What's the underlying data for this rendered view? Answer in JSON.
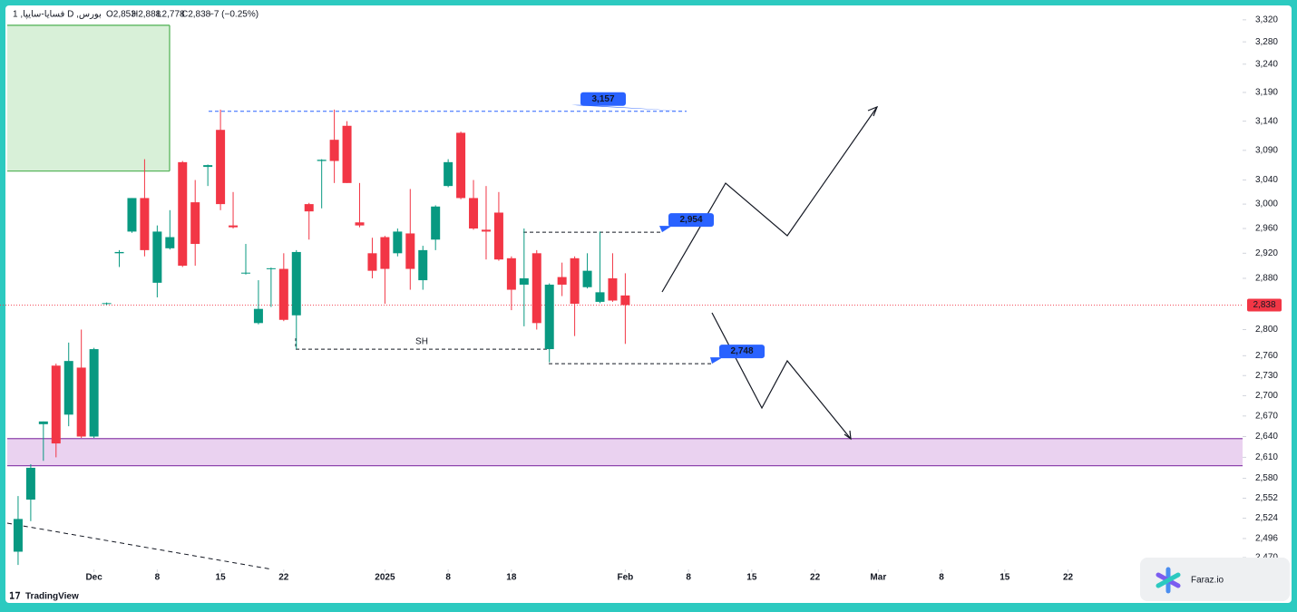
{
  "chart_data": {
    "type": "candlestick",
    "header": {
      "symbol": "1 ,فسایا-سایپا D ,بورس",
      "open": "O2,853",
      "high": "H2,888",
      "low": "L2,778",
      "close": "C2,838",
      "change": "−7 (−0.25%)"
    },
    "open": [
      2478,
      2550,
      2658,
      2745,
      2672,
      2742,
      2640,
      2840,
      2920,
      2955,
      3010,
      2873,
      2928,
      3070,
      3003,
      3062,
      3125,
      2965,
      2888,
      2810,
      2895,
      2895,
      2822,
      3000,
      3072,
      3108,
      3132,
      2970,
      2920,
      2946,
      2920,
      2952,
      2877,
      2942,
      3030,
      3120,
      3010,
      2958,
      2986,
      2912,
      2870,
      2920,
      2770,
      2882,
      2912,
      2866,
      2843,
      2880,
      2853
    ],
    "high": [
      2555,
      2600,
      2662,
      2748,
      2780,
      2800,
      2772,
      2842,
      2925,
      3010,
      3075,
      2965,
      2990,
      3072,
      3040,
      3066,
      3160,
      3020,
      2935,
      2877,
      2897,
      2920,
      2925,
      3002,
      3075,
      3160,
      3140,
      3035,
      2945,
      2948,
      2960,
      3025,
      2932,
      2998,
      3075,
      3122,
      3040,
      3030,
      3020,
      2915,
      2960,
      2925,
      2872,
      2905,
      2915,
      2920,
      2955,
      2920,
      2888
    ],
    "low": [
      2460,
      2520,
      2605,
      2610,
      2655,
      2638,
      2638,
      2838,
      2898,
      2953,
      2915,
      2850,
      2926,
      2898,
      2900,
      3030,
      2990,
      2960,
      2886,
      2808,
      2835,
      2813,
      2770,
      2942,
      2993,
      3035,
      3035,
      2962,
      2880,
      2840,
      2915,
      2862,
      2862,
      2925,
      3028,
      3008,
      2958,
      2910,
      2908,
      2830,
      2805,
      2800,
      2750,
      2852,
      2790,
      2864,
      2841,
      2843,
      2778
    ],
    "close": [
      2523,
      2595,
      2662,
      2630,
      2752,
      2640,
      2770,
      2841,
      2922,
      3010,
      2925,
      2955,
      2946,
      2900,
      2935,
      3065,
      3000,
      2962,
      2889,
      2832,
      2896,
      2815,
      2922,
      2988,
      3074,
      3072,
      3035,
      2965,
      2892,
      2895,
      2955,
      2895,
      2925,
      2996,
      3070,
      3010,
      2960,
      2955,
      2910,
      2862,
      2880,
      2810,
      2870,
      2870,
      2840,
      2892,
      2858,
      2845,
      2838
    ],
    "up_color": "#089981",
    "down_color": "#f23645",
    "log_scale": true,
    "xlim": [
      -1.43,
      96.8
    ],
    "ylim": [
      2454,
      3343
    ],
    "yticks": [
      {
        "value": 3320,
        "label": "3,320"
      },
      {
        "value": 3280,
        "label": "3,280"
      },
      {
        "value": 3240,
        "label": "3,240"
      },
      {
        "value": 3190,
        "label": "3,190"
      },
      {
        "value": 3140,
        "label": "3,140"
      },
      {
        "value": 3090,
        "label": "3,090"
      },
      {
        "value": 3040,
        "label": "3,040"
      },
      {
        "value": 3000,
        "label": "3,000"
      },
      {
        "value": 2960,
        "label": "2,960"
      },
      {
        "value": 2920,
        "label": "2,920"
      },
      {
        "value": 2880,
        "label": "2,880"
      },
      {
        "value": 2800,
        "label": "2,800"
      },
      {
        "value": 2760,
        "label": "2,760"
      },
      {
        "value": 2730,
        "label": "2,730"
      },
      {
        "value": 2700,
        "label": "2,700"
      },
      {
        "value": 2670,
        "label": "2,670"
      },
      {
        "value": 2640,
        "label": "2,640"
      },
      {
        "value": 2610,
        "label": "2,610"
      },
      {
        "value": 2580,
        "label": "2,580"
      },
      {
        "value": 2552,
        "label": "2,552"
      },
      {
        "value": 2524,
        "label": "2,524"
      },
      {
        "value": 2496,
        "label": "2,496"
      },
      {
        "value": 2470,
        "label": "2,470"
      }
    ],
    "xticks": [
      {
        "value": 6,
        "label": "Dec"
      },
      {
        "value": 11,
        "label": "8"
      },
      {
        "value": 16,
        "label": "15"
      },
      {
        "value": 21,
        "label": "22"
      },
      {
        "value": 29,
        "label": "2025"
      },
      {
        "value": 34,
        "label": "8"
      },
      {
        "value": 39,
        "label": "18"
      },
      {
        "value": 48,
        "label": "Feb"
      },
      {
        "value": 53,
        "label": "8"
      },
      {
        "value": 58,
        "label": "15"
      },
      {
        "value": 63,
        "label": "22"
      },
      {
        "value": 68,
        "label": "Mar"
      },
      {
        "value": 73,
        "label": "8"
      },
      {
        "value": 78,
        "label": "15"
      },
      {
        "value": 83,
        "label": "22"
      }
    ],
    "last_price": {
      "value": 2838,
      "label": "2,838"
    },
    "levels": [
      {
        "label": "3,157",
        "value": 3157
      },
      {
        "label": "2,954",
        "value": 2954
      },
      {
        "label": "2,748",
        "value": 2748
      },
      {
        "label": "SH",
        "value": 2770
      }
    ],
    "zones": [
      {
        "from": 3055,
        "to": 3310,
        "color": "#d8f0d8",
        "border": "#4caf50"
      },
      {
        "from": 2598,
        "to": 2637,
        "color": "#ead2f0",
        "border": "#8e44ad"
      }
    ],
    "branding": {
      "platform": "TradingView",
      "site": "Faraz.io"
    }
  }
}
